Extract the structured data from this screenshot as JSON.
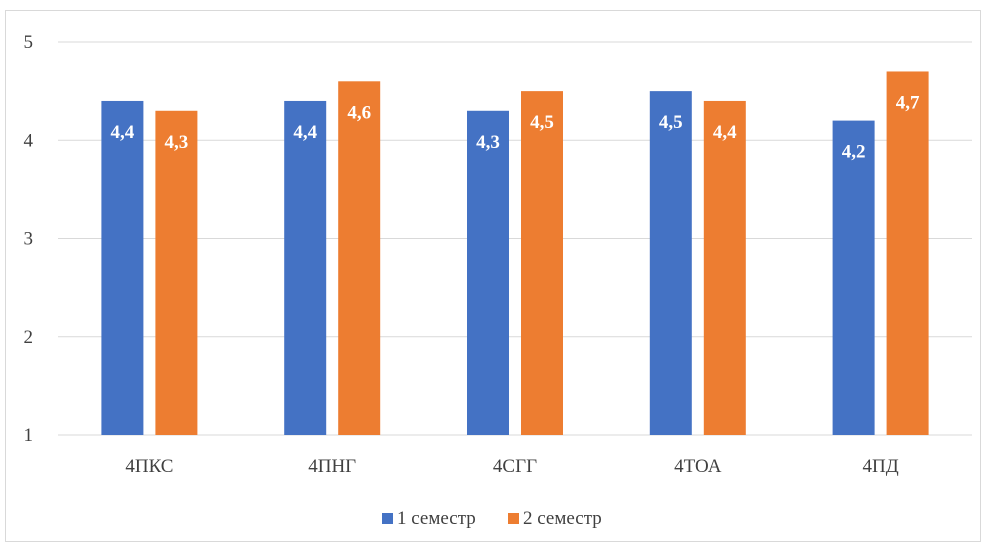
{
  "chart_data": {
    "type": "bar",
    "categories": [
      "4ПКС",
      "4ПНГ",
      "4СГГ",
      "4ТОА",
      "4ПД"
    ],
    "series": [
      {
        "name": "1 семестр",
        "values": [
          4.4,
          4.4,
          4.3,
          4.5,
          4.2
        ],
        "labels": [
          "4,4",
          "4,4",
          "4,3",
          "4,5",
          "4,2"
        ],
        "color": "#4472c4"
      },
      {
        "name": "2 семестр",
        "values": [
          4.3,
          4.6,
          4.5,
          4.4,
          4.7
        ],
        "labels": [
          "4,3",
          "4,6",
          "4,5",
          "4,4",
          "4,7"
        ],
        "color": "#ed7d31"
      }
    ],
    "title": "",
    "xlabel": "",
    "ylabel": "",
    "ylim": [
      1,
      5
    ],
    "yticks": [
      "1",
      "2",
      "3",
      "4",
      "5"
    ],
    "grid": true,
    "gridColor": "#d9d9d9",
    "legend": "bottom"
  }
}
